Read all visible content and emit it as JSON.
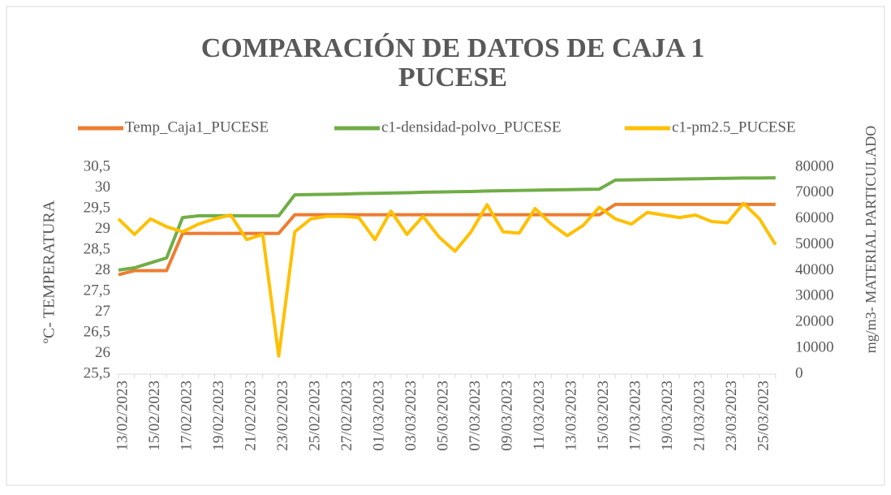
{
  "chart_data": {
    "type": "line",
    "title": [
      "COMPARACIÓN DE DATOS DE CAJA 1",
      "PUCESE"
    ],
    "ylabel": "ºC- TEMPERATURA",
    "y2label": "mg/m3- MATERIAL  PARTICULADO",
    "categories": [
      "13/02/2023",
      null,
      "15/02/2023",
      null,
      "17/02/2023",
      null,
      "19/02/2023",
      null,
      "21/02/2023",
      null,
      "23/02/2023",
      null,
      "25/02/2023",
      null,
      "27/02/2023",
      null,
      "01/03/2023",
      null,
      "03/03/2023",
      null,
      "05/03/2023",
      null,
      "07/03/2023",
      null,
      "09/03/2023",
      null,
      "11/03/2023",
      null,
      "13/03/2023",
      null,
      "15/03/2023",
      null,
      "17/03/2023",
      null,
      "19/03/2023",
      null,
      "21/03/2023",
      null,
      "23/03/2023",
      null,
      "25/03/2023",
      null
    ],
    "series": [
      {
        "name": "Temp_Caja1_PUCESE",
        "color": "#ed7d31",
        "values": [
          27.9,
          28.0,
          28.0,
          28.0,
          28.9,
          28.9,
          28.9,
          28.9,
          28.9,
          28.9,
          28.9,
          29.35,
          29.35,
          29.35,
          29.35,
          29.35,
          29.35,
          29.35,
          29.35,
          29.35,
          29.35,
          29.35,
          29.35,
          29.35,
          29.35,
          29.35,
          29.35,
          29.35,
          29.35,
          29.35,
          29.35,
          29.6,
          29.6,
          29.6,
          29.6,
          29.6,
          29.6,
          29.6,
          29.6,
          29.6,
          29.6,
          29.6
        ]
      },
      {
        "name": "c1-densidad-polvo_PUCESE",
        "color": "#70ad47",
        "axis": "y2",
        "values": [
          40200,
          41100,
          43000,
          44900,
          60500,
          61200,
          61200,
          61200,
          61200,
          61200,
          61200,
          69300,
          69400,
          69500,
          69600,
          69800,
          69900,
          70000,
          70100,
          70300,
          70400,
          70500,
          70600,
          70800,
          70900,
          71000,
          71100,
          71200,
          71300,
          71400,
          71500,
          75000,
          75100,
          75200,
          75300,
          75400,
          75500,
          75600,
          75700,
          75800,
          75800,
          75900
        ]
      },
      {
        "name": "c1-pm2.5_PUCESE",
        "color": "#ffc000",
        "axis": "y2",
        "values": [
          60000,
          54000,
          60000,
          57000,
          55000,
          58000,
          60000,
          61500,
          52000,
          54000,
          7000,
          55000,
          60000,
          61000,
          61000,
          60500,
          52000,
          63000,
          54000,
          61000,
          53000,
          47500,
          55000,
          65500,
          55000,
          54500,
          64000,
          58000,
          53500,
          57500,
          64500,
          60000,
          58000,
          62500,
          61500,
          60500,
          61500,
          59000,
          58500,
          66000,
          60000,
          50000
        ]
      }
    ],
    "ylim": [
      25.5,
      30.5
    ],
    "yticks": [
      {
        "value": 25.5,
        "label": "25,5"
      },
      26,
      {
        "value": 26.5,
        "label": "26,5"
      },
      27,
      {
        "value": 27.5,
        "label": "27,5"
      },
      28,
      {
        "value": 28.5,
        "label": "28,5"
      },
      29,
      {
        "value": 29.5,
        "label": "29,5"
      },
      30,
      {
        "value": 30.5,
        "label": "30,5"
      }
    ],
    "y2lim": [
      0,
      80000
    ],
    "y2ticks": [
      0,
      10000,
      20000,
      30000,
      40000,
      50000,
      60000,
      70000,
      80000
    ],
    "legend": "top"
  }
}
